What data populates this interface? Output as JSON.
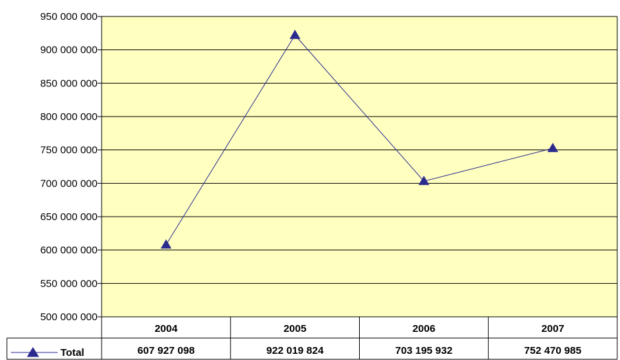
{
  "chart_data": {
    "type": "line",
    "categories": [
      "2004",
      "2005",
      "2006",
      "2007"
    ],
    "series": [
      {
        "name": "Total",
        "values": [
          607927098,
          922019824,
          703195932,
          752470985
        ]
      }
    ],
    "value_labels": [
      "607 927 098",
      "922 019 824",
      "703 195 932",
      "752 470 985"
    ],
    "y_ticks": [
      500000000,
      550000000,
      600000000,
      650000000,
      700000000,
      750000000,
      800000000,
      850000000,
      900000000,
      950000000
    ],
    "y_tick_labels": [
      "500 000 000",
      "550 000 000",
      "600 000 000",
      "650 000 000",
      "700 000 000",
      "750 000 000",
      "800 000 000",
      "850 000 000",
      "900 000 000",
      "950 000 000"
    ],
    "ylim": [
      500000000,
      950000000
    ],
    "grid": true,
    "legend": "data table below chart",
    "colors": {
      "plot_background": "#FFFFC0",
      "series": "#2B2B8F",
      "grid": "#000000"
    },
    "series_marker": "triangle"
  }
}
